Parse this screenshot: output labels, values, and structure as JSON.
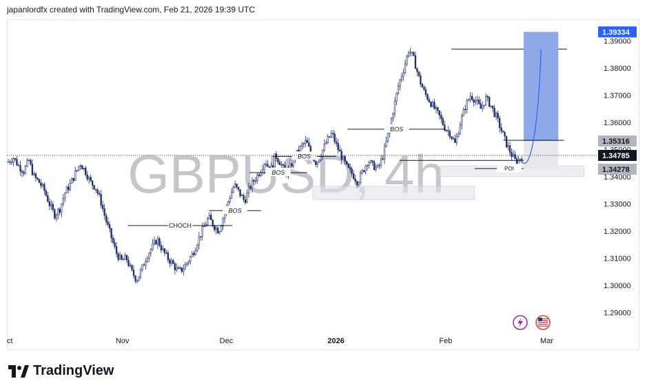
{
  "header": {
    "attribution": "japanlordfx created with TradingView.com, Feb 21, 2026 19:39 UTC"
  },
  "brand": {
    "name": "TradingView"
  },
  "chart_data": {
    "type": "candlestick",
    "symbol_watermark": "GBPUSD, 4h",
    "y_axis": {
      "ticks": [
        "1.39000",
        "1.38000",
        "1.37000",
        "1.36000",
        "1.35000",
        "1.34000",
        "1.33000",
        "1.32000",
        "1.31000",
        "1.30000",
        "1.29000"
      ],
      "range": [
        1.284,
        1.398
      ]
    },
    "x_axis": {
      "labels": [
        "ct",
        "Nov",
        "Dec",
        "2026",
        "Feb",
        "Mar"
      ],
      "bold": [
        "2026"
      ]
    },
    "price_labels": {
      "target": "1.39334",
      "entry": "1.35316",
      "last": "1.34785",
      "stop": "1.34278"
    },
    "levels": {
      "target": 1.39334,
      "entry": 1.35316,
      "last": 1.34785,
      "stop": 1.34278
    },
    "series_close_path": [
      1.3455,
      1.347,
      1.344,
      1.342,
      1.346,
      1.34,
      1.338,
      1.335,
      1.33,
      1.326,
      1.328,
      1.334,
      1.337,
      1.341,
      1.345,
      1.342,
      1.338,
      1.336,
      1.331,
      1.324,
      1.318,
      1.312,
      1.309,
      1.31,
      1.305,
      1.302,
      1.306,
      1.311,
      1.314,
      1.317,
      1.313,
      1.31,
      1.308,
      1.305,
      1.306,
      1.309,
      1.312,
      1.317,
      1.321,
      1.325,
      1.322,
      1.32,
      1.326,
      1.332,
      1.337,
      1.334,
      1.331,
      1.336,
      1.339,
      1.342,
      1.346,
      1.342,
      1.348,
      1.345,
      1.341,
      1.344,
      1.348,
      1.351,
      1.353,
      1.348,
      1.345,
      1.349,
      1.353,
      1.356,
      1.351,
      1.347,
      1.343,
      1.341,
      1.338,
      1.342,
      1.346,
      1.344,
      1.343,
      1.348,
      1.356,
      1.365,
      1.374,
      1.38,
      1.387,
      1.383,
      1.376,
      1.371,
      1.368,
      1.365,
      1.362,
      1.358,
      1.356,
      1.352,
      1.36,
      1.366,
      1.37,
      1.368,
      1.365,
      1.369,
      1.366,
      1.362,
      1.357,
      1.352,
      1.348,
      1.345,
      1.3478
    ],
    "annotations": [
      {
        "text": "CHOCH",
        "level": 1.322,
        "x_start": 0.21,
        "x_end": 0.39
      },
      {
        "text": "BOS",
        "level": 1.3275,
        "x_start": 0.35,
        "x_end": 0.44
      },
      {
        "text": "BOS",
        "level": 1.3415,
        "x_start": 0.42,
        "x_end": 0.52
      },
      {
        "text": "BOS",
        "level": 1.3475,
        "x_start": 0.46,
        "x_end": 0.57
      },
      {
        "text": "BOS",
        "level": 1.3575,
        "x_start": 0.59,
        "x_end": 0.76
      },
      {
        "text": "POI",
        "level": 1.343,
        "x_start": 0.81,
        "x_end": 0.93
      }
    ],
    "zones": [
      {
        "name": "upper-demand-zone",
        "top": 1.344,
        "bottom": 1.34,
        "x_start": 0.75,
        "x_end": 1.0
      },
      {
        "name": "lower-demand-zone",
        "top": 1.3365,
        "bottom": 1.3315,
        "x_start": 0.53,
        "x_end": 0.81
      }
    ],
    "high_line": {
      "level": 1.387,
      "x_start": 0.77,
      "x_end": 0.97
    },
    "icons": [
      "lightning-icon",
      "us-flag-icon"
    ],
    "colors": {
      "candle": "#1e2e6b",
      "target_box": "#8ea8e8",
      "target_label": "#2962ff",
      "entry_label": "#b2b5be",
      "last_label": "#131722",
      "stop_label": "#b2b5be",
      "zone": "#e0e3eb"
    }
  }
}
